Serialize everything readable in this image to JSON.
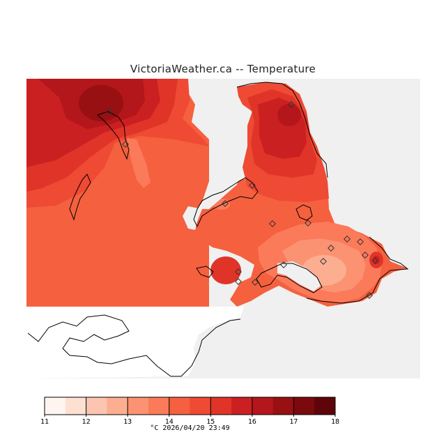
{
  "title": "VictoriaWeather.ca -- Temperature",
  "legend": {
    "unit": "°C",
    "timestamp": "2026/04/20 23:49",
    "ticks": [
      "11",
      "12",
      "13",
      "14",
      "15",
      "16",
      "17",
      "18"
    ],
    "colors": [
      "#fff5f0",
      "#fee0d2",
      "#fcc5b0",
      "#fcae91",
      "#fb9272",
      "#fb7a5a",
      "#f5603f",
      "#ee4a34",
      "#e03429",
      "#cb2021",
      "#b3161b",
      "#981012",
      "#7a0a0e",
      "#5e040a"
    ]
  },
  "map": {
    "field_colors": {
      "t14_5": "#f5603f",
      "t15": "#ee4a34",
      "t15_5": "#e03429",
      "t16": "#cb2021",
      "t16_5": "#b3161b",
      "t17": "#981012",
      "t14": "#fb7a5a",
      "t13_5": "#fb9272",
      "t13": "#fcae91",
      "unmapped": "#f0f0f0"
    },
    "station_count": 18
  }
}
